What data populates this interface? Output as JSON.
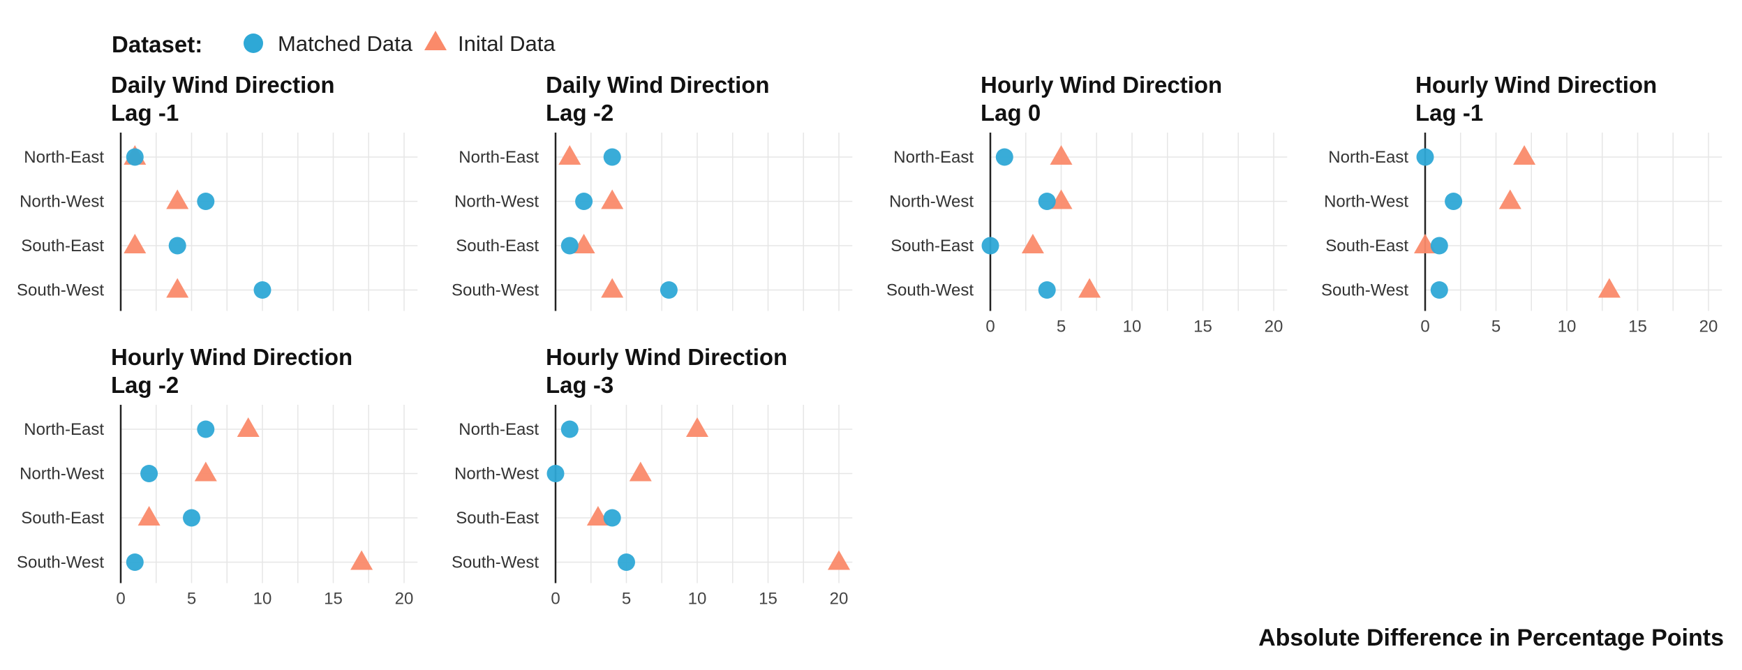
{
  "legend": {
    "title": "Dataset:",
    "entries": [
      {
        "label": "Matched Data",
        "shape": "circle",
        "color": "#2EA8D6"
      },
      {
        "label": "Inital Data",
        "shape": "triangle",
        "color": "#FA8A6A"
      }
    ]
  },
  "caption": "Absolute Difference in Percentage Points",
  "chart_data": {
    "type": "scatter",
    "xlim": [
      0,
      21
    ],
    "xticks": [
      "0",
      "5",
      "10",
      "15",
      "20"
    ],
    "categories": [
      "North-East",
      "North-West",
      "South-East",
      "South-West"
    ],
    "grid": true,
    "legend_placement": "top-left",
    "panels": [
      {
        "title": "Daily Wind Direction",
        "subtitle": "Lag -1",
        "show_x_ticks": false,
        "series": [
          {
            "name": "Matched Data",
            "values": [
              1,
              6,
              4,
              10
            ]
          },
          {
            "name": "Inital Data",
            "values": [
              1,
              4,
              1,
              4
            ]
          }
        ]
      },
      {
        "title": "Daily Wind Direction",
        "subtitle": "Lag -2",
        "show_x_ticks": false,
        "series": [
          {
            "name": "Matched Data",
            "values": [
              4,
              2,
              1,
              8
            ]
          },
          {
            "name": "Inital Data",
            "values": [
              1,
              4,
              2,
              4
            ]
          }
        ]
      },
      {
        "title": "Hourly Wind Direction",
        "subtitle": "Lag 0",
        "show_x_ticks": true,
        "series": [
          {
            "name": "Matched Data",
            "values": [
              1,
              4,
              0,
              4
            ]
          },
          {
            "name": "Inital Data",
            "values": [
              5,
              5,
              3,
              7
            ]
          }
        ]
      },
      {
        "title": "Hourly Wind Direction",
        "subtitle": "Lag -1",
        "show_x_ticks": true,
        "series": [
          {
            "name": "Matched Data",
            "values": [
              0,
              2,
              1,
              1
            ]
          },
          {
            "name": "Inital Data",
            "values": [
              7,
              6,
              0,
              13
            ]
          }
        ]
      },
      {
        "title": "Hourly Wind Direction",
        "subtitle": "Lag -2",
        "show_x_ticks": true,
        "series": [
          {
            "name": "Matched Data",
            "values": [
              6,
              2,
              5,
              1
            ]
          },
          {
            "name": "Inital Data",
            "values": [
              9,
              6,
              2,
              17
            ]
          }
        ]
      },
      {
        "title": "Hourly Wind Direction",
        "subtitle": "Lag -3",
        "show_x_ticks": true,
        "series": [
          {
            "name": "Matched Data",
            "values": [
              1,
              0,
              4,
              5
            ]
          },
          {
            "name": "Inital Data",
            "values": [
              10,
              6,
              3,
              20
            ]
          }
        ]
      }
    ]
  }
}
